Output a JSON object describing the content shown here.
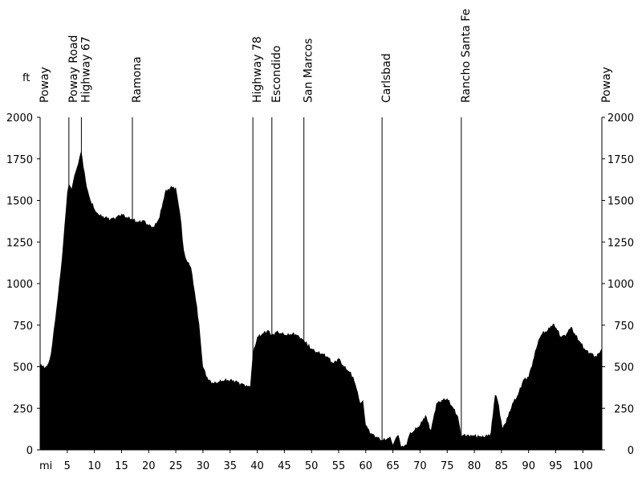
{
  "chart_data": {
    "type": "area",
    "title": "",
    "xlabel": "mi",
    "ylabel": "ft",
    "xlim": [
      0,
      103.5
    ],
    "ylim": [
      0,
      2000
    ],
    "grid": false,
    "legend": "none",
    "colors": {
      "fill": "#000000",
      "axis": "#000000",
      "background": "#ffffff"
    },
    "x_ticks": [
      5,
      10,
      15,
      20,
      25,
      30,
      35,
      40,
      45,
      50,
      55,
      60,
      65,
      70,
      75,
      80,
      85,
      90,
      95,
      100
    ],
    "y_ticks": [
      0,
      250,
      500,
      750,
      1000,
      1250,
      1500,
      1750,
      2000
    ],
    "landmarks": [
      {
        "name": "Poway",
        "mile": 0
      },
      {
        "name": "Poway Road",
        "mile": 5.3
      },
      {
        "name": "Highway 67",
        "mile": 7.6
      },
      {
        "name": "Ramona",
        "mile": 17.0
      },
      {
        "name": "Highway 78",
        "mile": 39.2
      },
      {
        "name": "Escondido",
        "mile": 42.7
      },
      {
        "name": "San Marcos",
        "mile": 48.6
      },
      {
        "name": "Carlsbad",
        "mile": 63.0
      },
      {
        "name": "Rancho Santa Fe",
        "mile": 77.6
      },
      {
        "name": "Poway",
        "mile": 103.5
      }
    ],
    "series": [
      {
        "x": [
          0,
          1,
          1.5,
          2,
          2.5,
          3,
          3.5,
          4,
          4.5,
          5,
          5.3,
          5.8,
          6.3,
          7,
          7.6,
          8,
          8.6,
          9.3,
          10.3,
          11,
          12,
          13,
          14,
          15,
          16,
          17,
          18,
          19,
          20,
          21,
          22,
          23,
          24,
          25,
          25.8,
          26.5,
          27,
          27.8,
          28.5,
          29.3,
          30,
          31,
          32,
          33,
          34,
          35,
          36,
          37,
          38,
          38.7,
          39.2,
          40,
          41,
          42,
          42.7,
          43.5,
          44.5,
          45.5,
          46.5,
          47.3,
          48.6,
          50,
          51,
          52,
          53,
          54,
          55,
          56,
          57,
          57.7,
          58.3,
          59,
          59.5,
          60,
          61,
          62,
          63,
          64,
          64.5,
          65,
          65.5,
          66,
          66.5,
          67,
          67.5,
          68,
          69,
          70,
          71,
          72,
          73,
          74,
          75,
          76,
          77,
          77.6,
          78,
          80,
          82,
          83,
          83.8,
          84.3,
          85.2,
          86.2,
          87,
          88,
          89,
          90,
          91,
          91.8,
          92.5,
          93.5,
          94.5,
          95.3,
          96,
          97,
          97.8,
          98.5,
          99.5,
          100.5,
          101.5,
          102.5,
          103.5
        ],
        "values": [
          510,
          500,
          520,
          580,
          720,
          850,
          1000,
          1150,
          1350,
          1550,
          1600,
          1570,
          1650,
          1720,
          1800,
          1700,
          1580,
          1500,
          1430,
          1410,
          1400,
          1390,
          1400,
          1420,
          1400,
          1390,
          1370,
          1380,
          1350,
          1340,
          1400,
          1550,
          1580,
          1580,
          1420,
          1200,
          1140,
          1100,
          950,
          760,
          500,
          420,
          400,
          410,
          420,
          420,
          415,
          400,
          390,
          380,
          580,
          680,
          700,
          720,
          690,
          710,
          700,
          690,
          700,
          690,
          660,
          610,
          590,
          580,
          560,
          520,
          550,
          500,
          470,
          440,
          370,
          280,
          300,
          150,
          100,
          80,
          60,
          70,
          80,
          30,
          70,
          90,
          20,
          20,
          30,
          90,
          120,
          150,
          210,
          120,
          280,
          300,
          310,
          260,
          200,
          80,
          90,
          85,
          80,
          100,
          330,
          300,
          130,
          200,
          280,
          330,
          420,
          440,
          560,
          660,
          700,
          720,
          760,
          720,
          680,
          700,
          740,
          700,
          650,
          600,
          580,
          560,
          610
        ]
      }
    ]
  }
}
